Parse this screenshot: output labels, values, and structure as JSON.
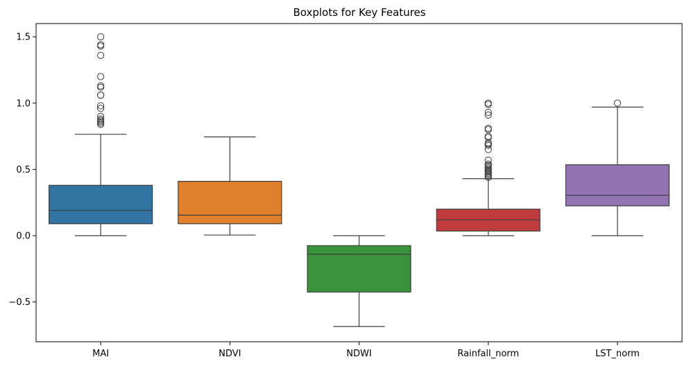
{
  "chart_data": {
    "type": "boxplot",
    "title": "Boxplots for Key Features",
    "xlabel": "",
    "ylabel": "",
    "ylim": [
      -0.8,
      1.6
    ],
    "yticks": [
      -0.5,
      0.0,
      0.5,
      1.0,
      1.5
    ],
    "ytick_labels": [
      "−0.5",
      "0.0",
      "0.5",
      "1.0",
      "1.5"
    ],
    "grid": false,
    "categories": [
      "MAI",
      "NDVI",
      "NDWI",
      "Rainfall_norm",
      "LST_norm"
    ],
    "series": [
      {
        "category": "MAI",
        "color": "#3274a1",
        "whisker_low": 0.0,
        "q1": 0.09,
        "median": 0.19,
        "q3": 0.38,
        "whisker_high": 0.765,
        "outliers": [
          1.5,
          1.44,
          1.43,
          1.36,
          1.2,
          1.13,
          1.12,
          1.06,
          1.06,
          0.98,
          0.96,
          0.9,
          0.88,
          0.87,
          0.86,
          0.85,
          0.84
        ]
      },
      {
        "category": "NDVI",
        "color": "#e1812c",
        "whisker_low": 0.005,
        "q1": 0.09,
        "median": 0.155,
        "q3": 0.41,
        "whisker_high": 0.745,
        "outliers": []
      },
      {
        "category": "NDWI",
        "color": "#3a923a",
        "whisker_low": -0.685,
        "q1": -0.425,
        "median": -0.14,
        "q3": -0.075,
        "whisker_high": 0.0,
        "outliers": []
      },
      {
        "category": "Rainfall_norm",
        "color": "#c03d3e",
        "whisker_low": 0.0,
        "q1": 0.035,
        "median": 0.12,
        "q3": 0.2,
        "whisker_high": 0.43,
        "outliers": [
          1.0,
          0.99,
          0.93,
          0.91,
          0.81,
          0.8,
          0.75,
          0.74,
          0.7,
          0.69,
          0.68,
          0.65,
          0.57,
          0.54,
          0.53,
          0.52,
          0.51,
          0.5,
          0.49,
          0.48,
          0.47,
          0.46,
          0.45,
          0.44
        ]
      },
      {
        "category": "LST_norm",
        "color": "#9372b2",
        "whisker_low": 0.0,
        "q1": 0.225,
        "median": 0.305,
        "q3": 0.535,
        "whisker_high": 0.97,
        "outliers": [
          1.0
        ]
      }
    ]
  }
}
